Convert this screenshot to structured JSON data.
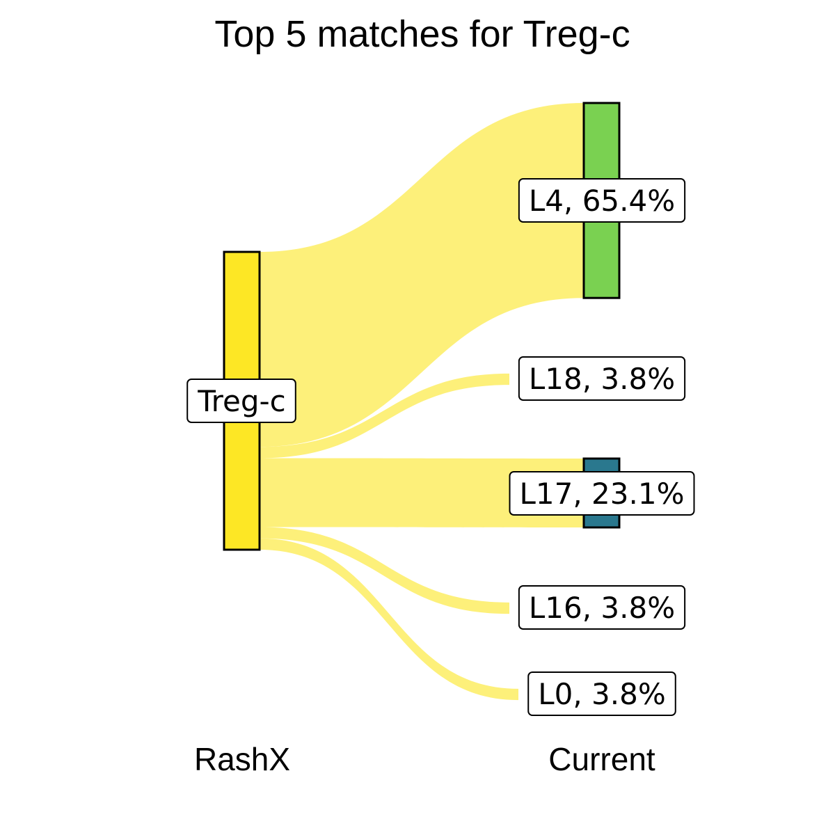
{
  "chart_data": {
    "type": "sankey",
    "title": "Top 5 matches for Treg-c",
    "axes": [
      "RashX",
      "Current"
    ],
    "source": {
      "name": "Treg-c",
      "label": "Treg-c",
      "color": "#fde725"
    },
    "flow_color": "#fdf07a",
    "targets": [
      {
        "name": "L4",
        "percent": 65.4,
        "label": "L4, 65.4%",
        "color": "#7ad151"
      },
      {
        "name": "L18",
        "percent": 3.8,
        "label": "L18, 3.8%",
        "color": "#fde725"
      },
      {
        "name": "L17",
        "percent": 23.1,
        "label": "L17, 23.1%",
        "color": "#2a788e"
      },
      {
        "name": "L16",
        "percent": 3.8,
        "label": "L16, 3.8%",
        "color": "#fde725"
      },
      {
        "name": "L0",
        "percent": 3.8,
        "label": "L0, 3.8%",
        "color": "#fde725"
      }
    ]
  }
}
